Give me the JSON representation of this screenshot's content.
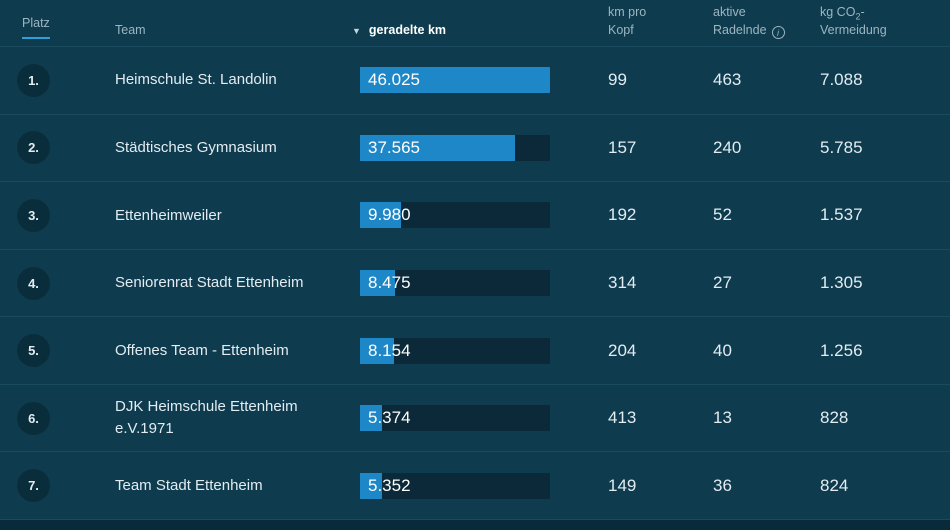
{
  "header": {
    "platz": "Platz",
    "team": "Team",
    "sort_icon": "▼",
    "geradelte_km": "geradelte km",
    "km_pro_kopf_line1": "km pro",
    "km_pro_kopf_line2": "Kopf",
    "aktive_line1": "aktive",
    "aktive_line2": "Radelnde",
    "info_icon": "i",
    "co2_prefix": "kg CO",
    "co2_sub": "2",
    "co2_dash": "-",
    "co2_line2": "Vermeidung"
  },
  "colors": {
    "bg": "#0e3b4e",
    "track": "#0b2938",
    "bar": "#1e87c8",
    "badge": "#0a2d3c",
    "separator": "#1a4a5e",
    "accent": "#2e9fd9",
    "header_text": "#9cb6c1",
    "value_text": "#e2ecf1",
    "white": "#ffffff",
    "bottom_strip": "#092a3a"
  },
  "max_km": 46025,
  "rows": [
    {
      "rank": "1.",
      "team": "Heimschule St. Landolin",
      "km_label": "46.025",
      "km_value": 46025,
      "km_pro_kopf": "99",
      "aktive": "463",
      "co2": "7.088"
    },
    {
      "rank": "2.",
      "team": "Städtisches Gymnasium",
      "km_label": "37.565",
      "km_value": 37565,
      "km_pro_kopf": "157",
      "aktive": "240",
      "co2": "5.785"
    },
    {
      "rank": "3.",
      "team": "Ettenheimweiler",
      "km_label": "9.980",
      "km_value": 9980,
      "km_pro_kopf": "192",
      "aktive": "52",
      "co2": "1.537"
    },
    {
      "rank": "4.",
      "team": "Seniorenrat Stadt Ettenheim",
      "km_label": "8.475",
      "km_value": 8475,
      "km_pro_kopf": "314",
      "aktive": "27",
      "co2": "1.305"
    },
    {
      "rank": "5.",
      "team": "Offenes Team - Ettenheim",
      "km_label": "8.154",
      "km_value": 8154,
      "km_pro_kopf": "204",
      "aktive": "40",
      "co2": "1.256"
    },
    {
      "rank": "6.",
      "team": "DJK Heimschule Ettenheim e.V.1971",
      "km_label": "5.374",
      "km_value": 5374,
      "km_pro_kopf": "413",
      "aktive": "13",
      "co2": "828"
    },
    {
      "rank": "7.",
      "team": "Team Stadt Ettenheim",
      "km_label": "5.352",
      "km_value": 5352,
      "km_pro_kopf": "149",
      "aktive": "36",
      "co2": "824"
    }
  ]
}
